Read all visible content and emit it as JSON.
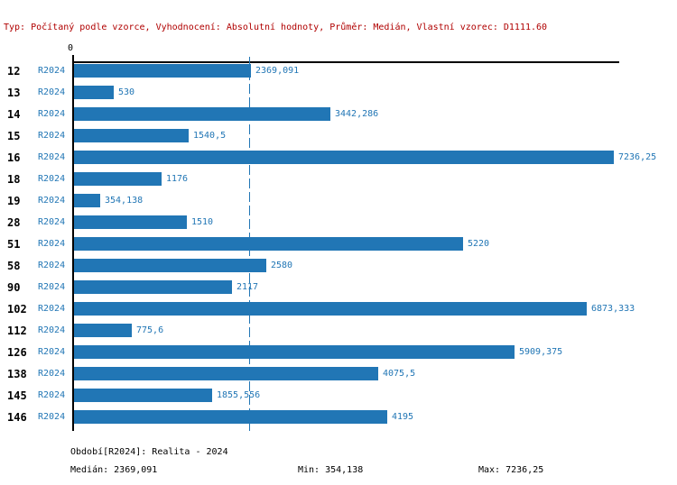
{
  "header": {
    "text": "Typ: Počítaný podle vzorce, Vyhodnocení: Absolutní hodnoty, Průměr: Medián, Vlastní vzorec: D1111.60",
    "color": "#b00000"
  },
  "axis": {
    "zero_label": "0"
  },
  "colors": {
    "accent_blue": "#2176b5",
    "axis_black": "#000000"
  },
  "chart_data": {
    "type": "bar",
    "orientation": "horizontal",
    "title": "",
    "xlabel": "",
    "ylabel": "",
    "xlim": [
      0,
      7236.25
    ],
    "grid": false,
    "series_label": "R2024",
    "categories": [
      "12",
      "13",
      "14",
      "15",
      "16",
      "18",
      "19",
      "28",
      "51",
      "58",
      "90",
      "102",
      "112",
      "126",
      "138",
      "145",
      "146"
    ],
    "values": [
      2369.091,
      530,
      3442.286,
      1540.5,
      7236.25,
      1176,
      354.138,
      1510,
      5220,
      2580,
      2117,
      6873.333,
      775.6,
      5909.375,
      4075.5,
      1855.556,
      4195
    ],
    "value_labels": [
      "2369,091",
      "530",
      "3442,286",
      "1540,5",
      "7236,25",
      "1176",
      "354,138",
      "1510",
      "5220",
      "2580",
      "2117",
      "6873,333",
      "775,6",
      "5909,375",
      "4075,5",
      "1855,556",
      "4195"
    ],
    "median": 2369.091,
    "bar_color": "#2176b5",
    "median_line_color": "#2176b5",
    "legend_position": "none"
  },
  "footer": {
    "period_label": "Období[R2024]: Realita - 2024",
    "median_label": "Medián: 2369,091",
    "min_label": "Min: 354,138",
    "max_label": "Max: 7236,25"
  }
}
